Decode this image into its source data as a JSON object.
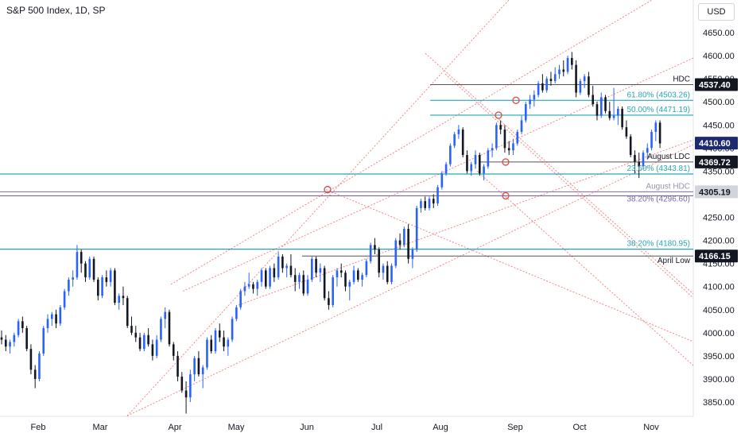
{
  "header": {
    "title": "S&P 500 Index, 1D, SP",
    "currency_label": "USD"
  },
  "colors": {
    "bull": "#2962ff",
    "bear": "#131722",
    "fib": "#26a7b5",
    "channel": "#f26464",
    "level": "#555555",
    "purple": "#7b6a99"
  },
  "chart_data": {
    "type": "candlestick",
    "title": "S&P 500 Index, 1D, SP",
    "ylim": [
      3820,
      4690
    ],
    "y_ticks": [
      "3850.00",
      "3900.00",
      "3950.00",
      "4000.00",
      "4050.00",
      "4100.00",
      "4150.00",
      "4200.00",
      "4250.00",
      "4300.00",
      "4350.00",
      "4400.00",
      "4450.00",
      "4500.00",
      "4550.00",
      "4600.00",
      "4650.00"
    ],
    "x_ticks": [
      "Feb",
      "Mar",
      "Apr",
      "May",
      "Jun",
      "Jul",
      "Aug",
      "Sep",
      "Oct",
      "Nov"
    ],
    "bars_count": 165,
    "candles": [
      [
        3990,
        4005,
        3975,
        3985
      ],
      [
        3985,
        3995,
        3960,
        3970
      ],
      [
        3970,
        3985,
        3955,
        3980
      ],
      [
        3980,
        4000,
        3970,
        3995
      ],
      [
        3995,
        4030,
        3990,
        4025
      ],
      [
        4025,
        4035,
        4000,
        4010
      ],
      [
        4010,
        4015,
        3960,
        3965
      ],
      [
        3965,
        3975,
        3910,
        3920
      ],
      [
        3920,
        3930,
        3880,
        3900
      ],
      [
        3900,
        3960,
        3895,
        3955
      ],
      [
        3955,
        4015,
        3950,
        4010
      ],
      [
        4010,
        4040,
        4000,
        4030
      ],
      [
        4030,
        4045,
        4015,
        4040
      ],
      [
        4040,
        4050,
        4010,
        4020
      ],
      [
        4020,
        4060,
        4015,
        4055
      ],
      [
        4055,
        4095,
        4050,
        4090
      ],
      [
        4090,
        4120,
        4080,
        4115
      ],
      [
        4115,
        4135,
        4100,
        4120
      ],
      [
        4120,
        4190,
        4115,
        4175
      ],
      [
        4175,
        4180,
        4130,
        4150
      ],
      [
        4150,
        4155,
        4110,
        4120
      ],
      [
        4120,
        4165,
        4115,
        4160
      ],
      [
        4160,
        4165,
        4110,
        4115
      ],
      [
        4115,
        4120,
        4070,
        4080
      ],
      [
        4080,
        4125,
        4075,
        4120
      ],
      [
        4120,
        4135,
        4100,
        4110
      ],
      [
        4110,
        4140,
        4100,
        4135
      ],
      [
        4135,
        4140,
        4060,
        4065
      ],
      [
        4065,
        4085,
        4050,
        4080
      ],
      [
        4080,
        4100,
        4060,
        4075
      ],
      [
        4075,
        4080,
        4010,
        4015
      ],
      [
        4015,
        4035,
        3995,
        4000
      ],
      [
        4000,
        4015,
        3980,
        3990
      ],
      [
        3990,
        4000,
        3960,
        3965
      ],
      [
        3965,
        4000,
        3960,
        3995
      ],
      [
        3995,
        4010,
        3970,
        3975
      ],
      [
        3975,
        3985,
        3940,
        3950
      ],
      [
        3950,
        3995,
        3945,
        3985
      ],
      [
        3985,
        4035,
        3980,
        4030
      ],
      [
        4030,
        4055,
        4010,
        4045
      ],
      [
        4045,
        4050,
        3970,
        3975
      ],
      [
        3975,
        3980,
        3940,
        3950
      ],
      [
        3950,
        3960,
        3895,
        3905
      ],
      [
        3905,
        3915,
        3870,
        3875
      ],
      [
        3875,
        3895,
        3825,
        3860
      ],
      [
        3860,
        3920,
        3850,
        3910
      ],
      [
        3910,
        3950,
        3895,
        3945
      ],
      [
        3945,
        3960,
        3905,
        3910
      ],
      [
        3910,
        3930,
        3880,
        3925
      ],
      [
        3925,
        3990,
        3920,
        3985
      ],
      [
        3985,
        3995,
        3955,
        3960
      ],
      [
        3960,
        4010,
        3955,
        4005
      ],
      [
        4005,
        4020,
        3980,
        3990
      ],
      [
        3990,
        4005,
        3960,
        3970
      ],
      [
        3970,
        3990,
        3950,
        3985
      ],
      [
        3985,
        4035,
        3980,
        4030
      ],
      [
        4030,
        4060,
        4025,
        4055
      ],
      [
        4055,
        4095,
        4050,
        4090
      ],
      [
        4090,
        4110,
        4080,
        4100
      ],
      [
        4100,
        4130,
        4095,
        4105
      ],
      [
        4105,
        4110,
        4085,
        4095
      ],
      [
        4095,
        4115,
        4080,
        4110
      ],
      [
        4110,
        4140,
        4100,
        4135
      ],
      [
        4135,
        4140,
        4095,
        4100
      ],
      [
        4100,
        4145,
        4095,
        4140
      ],
      [
        4140,
        4150,
        4110,
        4120
      ],
      [
        4120,
        4175,
        4115,
        4165
      ],
      [
        4165,
        4170,
        4130,
        4140
      ],
      [
        4140,
        4150,
        4120,
        4145
      ],
      [
        4145,
        4170,
        4120,
        4125
      ],
      [
        4125,
        4140,
        4090,
        4110
      ],
      [
        4110,
        4130,
        4095,
        4125
      ],
      [
        4125,
        4135,
        4080,
        4085
      ],
      [
        4085,
        4125,
        4080,
        4115
      ],
      [
        4115,
        4165,
        4110,
        4160
      ],
      [
        4160,
        4165,
        4120,
        4130
      ],
      [
        4130,
        4150,
        4110,
        4140
      ],
      [
        4140,
        4145,
        4070,
        4075
      ],
      [
        4075,
        4090,
        4050,
        4060
      ],
      [
        4060,
        4125,
        4055,
        4120
      ],
      [
        4120,
        4140,
        4100,
        4135
      ],
      [
        4135,
        4150,
        4120,
        4130
      ],
      [
        4130,
        4135,
        4090,
        4100
      ],
      [
        4100,
        4115,
        4070,
        4110
      ],
      [
        4110,
        4145,
        4105,
        4135
      ],
      [
        4135,
        4140,
        4110,
        4115
      ],
      [
        4115,
        4130,
        4100,
        4125
      ],
      [
        4125,
        4160,
        4120,
        4155
      ],
      [
        4155,
        4195,
        4150,
        4190
      ],
      [
        4190,
        4205,
        4170,
        4180
      ],
      [
        4180,
        4185,
        4120,
        4130
      ],
      [
        4130,
        4150,
        4115,
        4145
      ],
      [
        4145,
        4155,
        4105,
        4110
      ],
      [
        4110,
        4150,
        4105,
        4145
      ],
      [
        4145,
        4205,
        4140,
        4200
      ],
      [
        4200,
        4215,
        4180,
        4190
      ],
      [
        4190,
        4230,
        4185,
        4225
      ],
      [
        4225,
        4235,
        4150,
        4160
      ],
      [
        4160,
        4185,
        4140,
        4180
      ],
      [
        4180,
        4275,
        4175,
        4270
      ],
      [
        4270,
        4290,
        4260,
        4285
      ],
      [
        4285,
        4295,
        4265,
        4270
      ],
      [
        4270,
        4295,
        4265,
        4290
      ],
      [
        4290,
        4300,
        4270,
        4280
      ],
      [
        4280,
        4320,
        4275,
        4315
      ],
      [
        4315,
        4350,
        4310,
        4345
      ],
      [
        4345,
        4370,
        4340,
        4365
      ],
      [
        4365,
        4410,
        4360,
        4405
      ],
      [
        4405,
        4435,
        4400,
        4430
      ],
      [
        4430,
        4450,
        4420,
        4440
      ],
      [
        4440,
        4445,
        4380,
        4385
      ],
      [
        4385,
        4395,
        4345,
        4350
      ],
      [
        4350,
        4370,
        4340,
        4365
      ],
      [
        4365,
        4395,
        4355,
        4385
      ],
      [
        4385,
        4390,
        4340,
        4345
      ],
      [
        4345,
        4365,
        4330,
        4360
      ],
      [
        4360,
        4400,
        4355,
        4395
      ],
      [
        4395,
        4410,
        4380,
        4400
      ],
      [
        4400,
        4455,
        4395,
        4450
      ],
      [
        4450,
        4460,
        4430,
        4440
      ],
      [
        4440,
        4450,
        4390,
        4400
      ],
      [
        4400,
        4415,
        4385,
        4395
      ],
      [
        4395,
        4420,
        4385,
        4410
      ],
      [
        4410,
        4440,
        4405,
        4435
      ],
      [
        4435,
        4470,
        4430,
        4460
      ],
      [
        4460,
        4500,
        4455,
        4495
      ],
      [
        4495,
        4515,
        4485,
        4505
      ],
      [
        4505,
        4525,
        4490,
        4515
      ],
      [
        4515,
        4545,
        4510,
        4540
      ],
      [
        4540,
        4560,
        4520,
        4525
      ],
      [
        4525,
        4555,
        4520,
        4550
      ],
      [
        4550,
        4565,
        4535,
        4545
      ],
      [
        4545,
        4575,
        4540,
        4560
      ],
      [
        4560,
        4580,
        4550,
        4570
      ],
      [
        4570,
        4590,
        4555,
        4565
      ],
      [
        4565,
        4600,
        4560,
        4595
      ],
      [
        4595,
        4608,
        4570,
        4580
      ],
      [
        4580,
        4590,
        4510,
        4520
      ],
      [
        4520,
        4550,
        4515,
        4545
      ],
      [
        4545,
        4560,
        4530,
        4555
      ],
      [
        4555,
        4565,
        4510,
        4515
      ],
      [
        4515,
        4535,
        4490,
        4495
      ],
      [
        4495,
        4500,
        4460,
        4470
      ],
      [
        4470,
        4520,
        4465,
        4510
      ],
      [
        4510,
        4515,
        4475,
        4480
      ],
      [
        4480,
        4500,
        4460,
        4465
      ],
      [
        4465,
        4530,
        4460,
        4470
      ],
      [
        4470,
        4490,
        4450,
        4485
      ],
      [
        4485,
        4490,
        4440,
        4445
      ],
      [
        4445,
        4460,
        4420,
        4425
      ],
      [
        4425,
        4430,
        4380,
        4385
      ],
      [
        4385,
        4395,
        4345,
        4370
      ],
      [
        4370,
        4390,
        4335,
        4360
      ],
      [
        4360,
        4395,
        4355,
        4390
      ],
      [
        4390,
        4410,
        4375,
        4400
      ],
      [
        4400,
        4440,
        4395,
        4435
      ],
      [
        4435,
        4460,
        4415,
        4455
      ],
      [
        4455,
        4460,
        4400,
        4410
      ]
    ],
    "price_levels": [
      {
        "label": "HDC",
        "value": 4537.4,
        "tag": "4537.40"
      },
      {
        "label": "August LDC",
        "value": 4369.72,
        "tag": "4369.72"
      },
      {
        "label": "August HDC",
        "value": 4305.19,
        "tag": "4305.19"
      },
      {
        "label": "April Low",
        "value": 4166.15,
        "tag": "4166.15"
      }
    ],
    "fib_levels": [
      {
        "label": "61.80% (4503.26)",
        "value": 4503.26
      },
      {
        "label": "50.00% (4471.19)",
        "value": 4471.19
      },
      {
        "label": "23.60% (4343.81)",
        "value": 4343.81
      },
      {
        "label": "38.20% (4296.60)",
        "value": 4296.6
      },
      {
        "label": "38.20% (4180.95)",
        "value": 4180.95
      }
    ],
    "last_price_tag": "4410.60",
    "last_price": 4410.6
  }
}
